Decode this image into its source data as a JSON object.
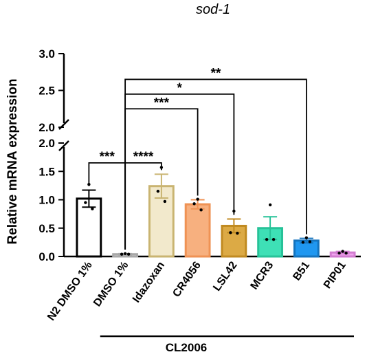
{
  "chart_data": {
    "type": "bar",
    "title": "sod-1",
    "xlabel": "",
    "ylabel": "Relative mRNA expression",
    "axis_break": {
      "lower_range": [
        0,
        2.0
      ],
      "upper_range": [
        2.0,
        3.0
      ]
    },
    "lower_ticks": [
      "0.0",
      "0.5",
      "1.0",
      "1.5",
      "2.0"
    ],
    "upper_ticks": [
      "2.0",
      "2.5",
      "3.0"
    ],
    "categories": [
      "N2 DMSO 1%",
      "DMSO 1%",
      "Idazoxan",
      "CR4056",
      "LSL42",
      "MCR3",
      "B51",
      "PIP01"
    ],
    "values": [
      1.02,
      0.04,
      1.24,
      0.92,
      0.54,
      0.5,
      0.28,
      0.07
    ],
    "errors": [
      0.15,
      0.01,
      0.21,
      0.08,
      0.12,
      0.2,
      0.04,
      0.02
    ],
    "points": [
      [
        1.27,
        0.95,
        0.84
      ],
      [
        0.05,
        0.04,
        0.04
      ],
      [
        1.57,
        1.15,
        0.97
      ],
      [
        1.01,
        0.93,
        0.82
      ],
      [
        0.8,
        0.42,
        0.41
      ],
      [
        0.91,
        0.3,
        0.3
      ],
      [
        0.33,
        0.25,
        0.26
      ],
      [
        0.09,
        0.06,
        0.06
      ]
    ],
    "colors": {
      "fill": [
        "#ffffff",
        "#d9d9d9",
        "#f2e9cc",
        "#f7b07f",
        "#dcaa45",
        "#3ee0b6",
        "#1f97f0",
        "#f0a4ee"
      ],
      "stroke": [
        "#000000",
        "#a8a8a8",
        "#c9b471",
        "#ef9254",
        "#c08a21",
        "#27c298",
        "#1473bd",
        "#d27bd0"
      ]
    },
    "significance": [
      {
        "label": "***",
        "from": "N2 DMSO 1%",
        "to": "DMSO 1%",
        "level": 1.65
      },
      {
        "label": "****",
        "from": "DMSO 1%",
        "to": "Idazoxan",
        "level": 1.65
      },
      {
        "label": "***",
        "from": "DMSO 1%",
        "to": "CR4056",
        "level": 2.25
      },
      {
        "label": "*",
        "from": "DMSO 1%",
        "to": "LSL42",
        "level": 2.45
      },
      {
        "label": "**",
        "from": "DMSO 1%",
        "to": "B51",
        "level": 2.65
      }
    ],
    "group_label": {
      "text": "CL2006",
      "from": "DMSO 1%",
      "to": "PIP01"
    },
    "legend": "none"
  }
}
